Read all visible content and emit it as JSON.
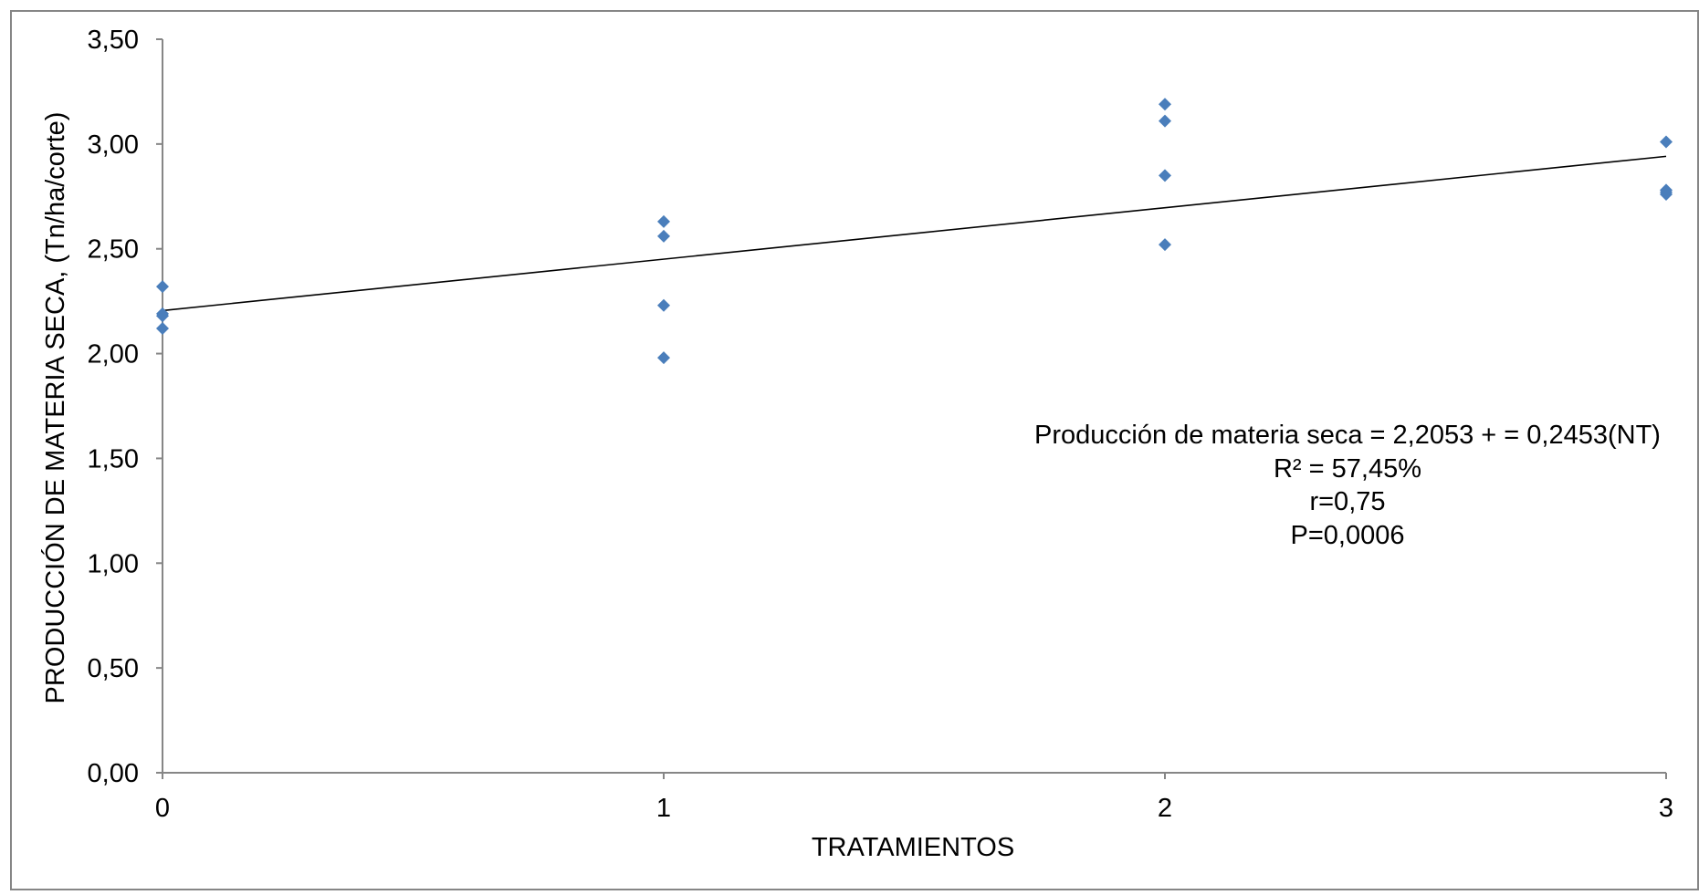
{
  "chart_data": {
    "type": "scatter",
    "xlabel": "TRATAMIENTOS",
    "ylabel": "PRODUCCIÓN DE MATERIA SECA, (Tn/ha/corte)",
    "xlim": [
      0,
      3
    ],
    "ylim": [
      0,
      3.5
    ],
    "x_ticks": [
      "0",
      "1",
      "2",
      "3"
    ],
    "y_ticks": [
      "0,00",
      "0,50",
      "1,00",
      "1,50",
      "2,00",
      "2,50",
      "3,00",
      "3,50"
    ],
    "grid": false,
    "legend": "none",
    "series": [
      {
        "points": [
          {
            "x": 0,
            "y": 2.32
          },
          {
            "x": 0,
            "y": 2.19
          },
          {
            "x": 0,
            "y": 2.18
          },
          {
            "x": 0,
            "y": 2.12
          },
          {
            "x": 1,
            "y": 2.63
          },
          {
            "x": 1,
            "y": 2.56
          },
          {
            "x": 1,
            "y": 2.23
          },
          {
            "x": 1,
            "y": 1.98
          },
          {
            "x": 2,
            "y": 3.19
          },
          {
            "x": 2,
            "y": 3.11
          },
          {
            "x": 2,
            "y": 2.85
          },
          {
            "x": 2,
            "y": 2.52
          },
          {
            "x": 3,
            "y": 3.01
          },
          {
            "x": 3,
            "y": 2.78
          },
          {
            "x": 3,
            "y": 2.77
          },
          {
            "x": 3,
            "y": 2.76
          }
        ]
      }
    ],
    "trendline": {
      "intercept": 2.2053,
      "slope": 0.2453
    },
    "annotations": [
      "Producción de materia seca = 2,2053 + = 0,2453(NT)",
      "R² = 57,45%",
      "r=0,75",
      "P=0,0006"
    ],
    "colors": {
      "marker": "#4A7EBB",
      "trendline": "#000000",
      "axis": "#868686"
    }
  }
}
